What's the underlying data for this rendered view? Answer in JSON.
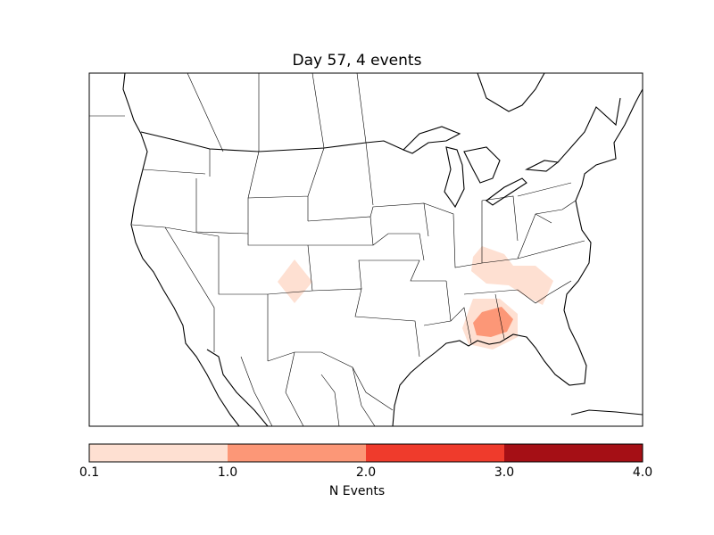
{
  "title": "Day 57, 4 events",
  "colorbar": {
    "label": "N Events",
    "ticks": [
      "0.1",
      "1.0",
      "2.0",
      "3.0",
      "4.0"
    ],
    "bounds": [
      0.1,
      1.0,
      2.0,
      3.0,
      4.0
    ],
    "colors": [
      "#fee0d2",
      "#fc9777",
      "#ef3b2c",
      "#a50f15"
    ]
  },
  "event_colors": {
    "low": "#fee0d2",
    "mid": "#fc9777"
  }
}
